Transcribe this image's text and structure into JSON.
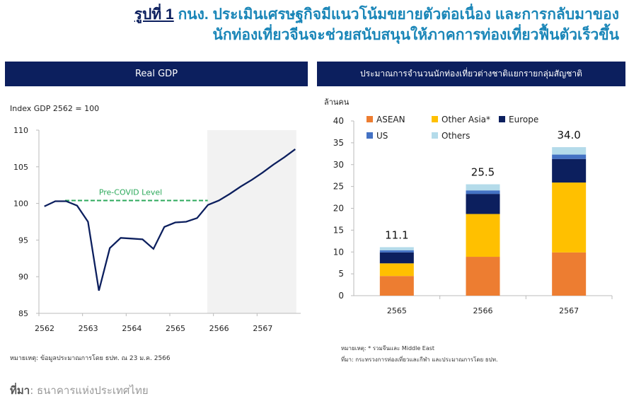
{
  "title": {
    "figure": "รูปที่ 1",
    "line1": "กนง. ประเมินเศรษฐกิจมีแนวโน้มขยายตัวต่อเนื่อง และการกลับมาของ",
    "line2": "นักท่องเที่ยวจีนจะช่วยสนับสนุนให้ภาคการท่องเที่ยวฟื้นตัวเร็วขึ้น"
  },
  "left": {
    "header": "Real GDP",
    "note": "หมายเหตุ: ข้อมูลประมาณการโดย ธปท. ณ 23 ม.ค. 2566"
  },
  "right": {
    "header": "ประมาณการจำนวนนักท่องเที่ยวต่างชาติแยกรายกลุ่มสัญชาติ",
    "note1": "หมายเหตุ: * รวมจีนและ Middle East",
    "note2": "ที่มา: กระทรวงการท่องเที่ยวและกีฬา และประมาณการโดย ธปท."
  },
  "source": {
    "label": "ที่มา",
    "text": ": ธนาคารแห่งประเทศไทย"
  },
  "chart_data": [
    {
      "type": "line",
      "ylabel": "Index GDP 2562 = 100",
      "ylim": [
        85,
        110
      ],
      "yticks": [
        85,
        90,
        95,
        100,
        105,
        110
      ],
      "xticks": [
        "2562",
        "2563",
        "2564",
        "2565",
        "2566",
        "2567"
      ],
      "forecast_shaded_from": "2565Q4",
      "color": "#0c1f5e",
      "x": [
        "2562Q1",
        "2562Q2",
        "2562Q3",
        "2562Q4",
        "2563Q1",
        "2563Q2",
        "2563Q3",
        "2563Q4",
        "2564Q1",
        "2564Q2",
        "2564Q3",
        "2564Q4",
        "2565Q1",
        "2565Q2",
        "2565Q3",
        "2565Q4",
        "2566Q1",
        "2566Q2",
        "2566Q3",
        "2566Q4",
        "2567Q1",
        "2567Q2",
        "2567Q3",
        "2567Q4"
      ],
      "values": [
        99.6,
        100.3,
        100.3,
        99.7,
        97.5,
        88.1,
        93.9,
        95.3,
        95.2,
        95.1,
        93.8,
        96.8,
        97.4,
        97.5,
        98.0,
        99.8,
        100.4,
        101.3,
        102.3,
        103.2,
        104.2,
        105.3,
        106.3,
        107.4
      ],
      "annotation": {
        "text": "Pre-COVID Level",
        "value": 100.4,
        "color": "#2eaa5c"
      }
    },
    {
      "type": "bar",
      "stacked": true,
      "ylabel": "ล้านคน",
      "ylim": [
        0,
        40
      ],
      "yticks": [
        0,
        5,
        10,
        15,
        20,
        25,
        30,
        35,
        40
      ],
      "categories": [
        "2565",
        "2566",
        "2567"
      ],
      "totals": [
        "11.1",
        "25.5",
        "34.0"
      ],
      "legend": "top-left",
      "series": [
        {
          "name": "ASEAN",
          "color": "#ed7d31",
          "values": [
            4.5,
            8.9,
            9.9
          ]
        },
        {
          "name": "Other Asia*",
          "color": "#ffc000",
          "values": [
            2.9,
            9.8,
            16.0
          ]
        },
        {
          "name": "Europe",
          "color": "#0c1f5e",
          "values": [
            2.5,
            4.6,
            5.4
          ]
        },
        {
          "name": "US",
          "color": "#4472c4",
          "values": [
            0.5,
            0.8,
            1.0
          ]
        },
        {
          "name": "Others",
          "color": "#b4dbea",
          "values": [
            0.7,
            1.4,
            1.7
          ]
        }
      ]
    }
  ]
}
